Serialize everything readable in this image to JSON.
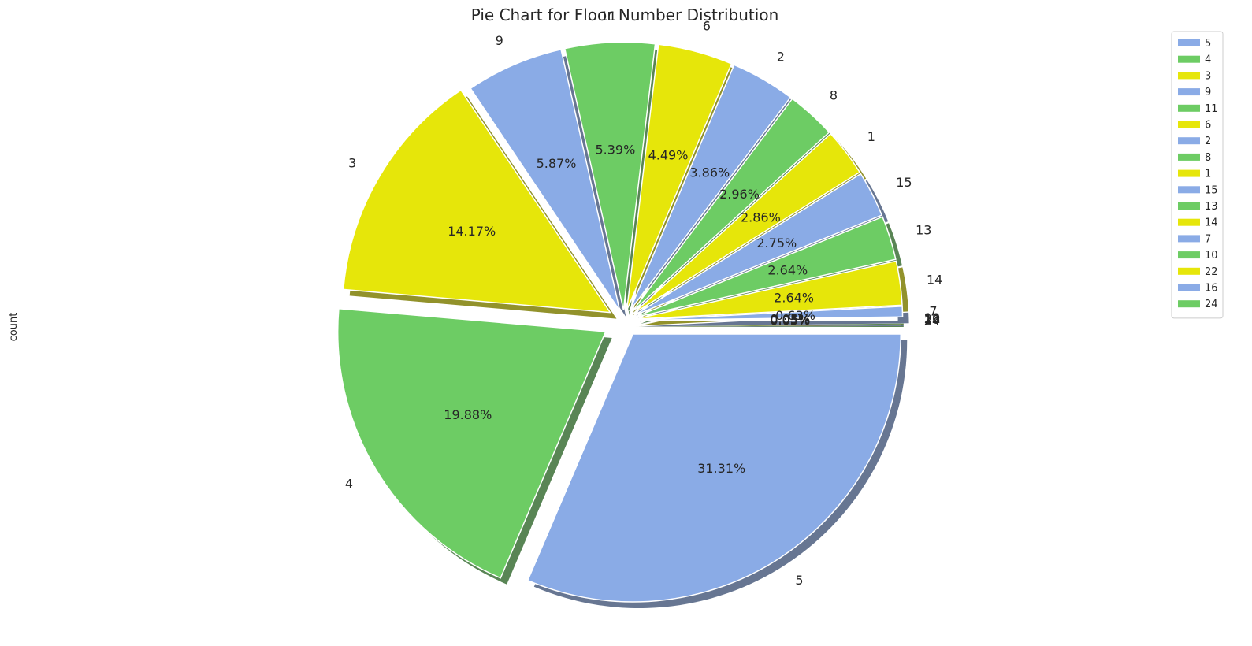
{
  "chart_data": {
    "type": "pie",
    "title": "Pie Chart for Floor Number Distribution",
    "ylabel": "count",
    "labels": [
      "5",
      "4",
      "3",
      "9",
      "11",
      "6",
      "2",
      "8",
      "1",
      "15",
      "13",
      "14",
      "7",
      "10",
      "22",
      "16",
      "24"
    ],
    "values": [
      31.31,
      19.88,
      14.17,
      5.87,
      5.39,
      4.49,
      3.86,
      2.96,
      2.86,
      2.75,
      2.64,
      2.64,
      0.63,
      0.05,
      0.05,
      0.05,
      0.05
    ],
    "percent_labels": [
      "31.31%",
      "19.88%",
      "14.17%",
      "5.87%",
      "5.39%",
      "4.49%",
      "3.86%",
      "2.96%",
      "2.86%",
      "2.75%",
      "2.64%",
      "2.64%",
      "0.63%",
      "0.05%",
      "0.05%",
      "0.05%",
      "0.05%"
    ],
    "colors": [
      "#8aabe6",
      "#6dcc64",
      "#e6e60a"
    ],
    "explode": [
      0.06,
      0.08,
      0.06,
      0.04,
      0.04,
      0.04,
      0.04,
      0.04,
      0.04,
      0.04,
      0.04,
      0.04,
      0.04,
      0.02,
      0.02,
      0.02,
      0.02
    ],
    "start_angle_deg": 0,
    "counterclockwise": false,
    "shadow": true,
    "legend_position": "top-right"
  }
}
